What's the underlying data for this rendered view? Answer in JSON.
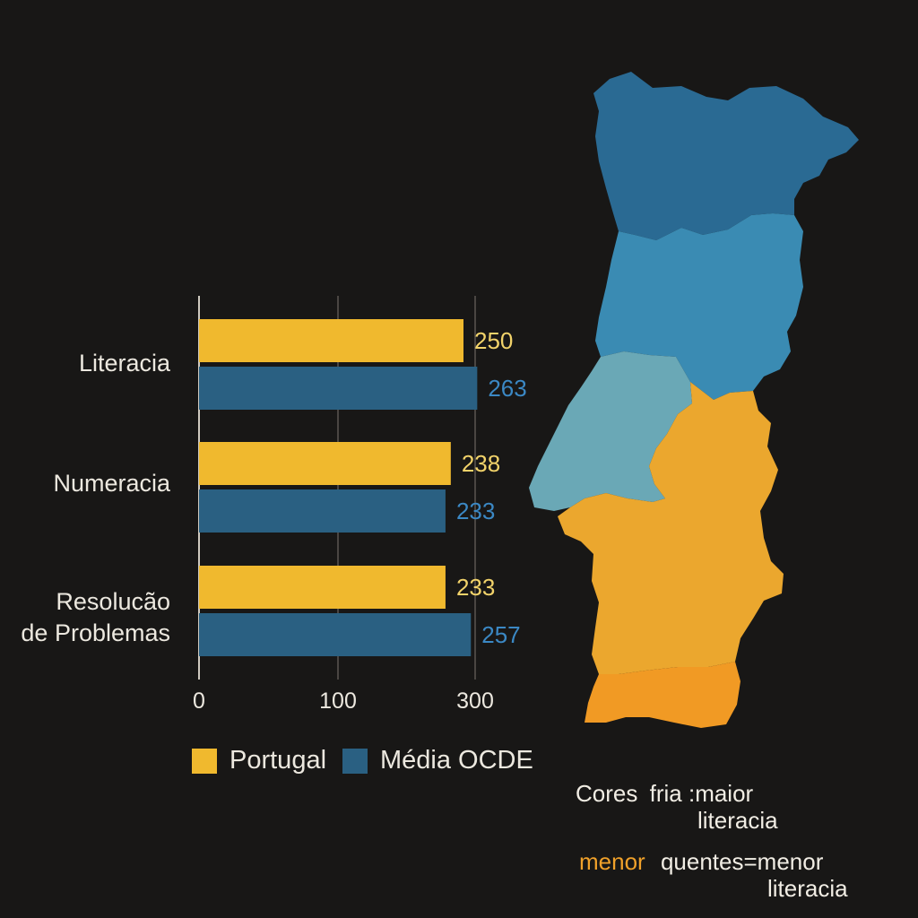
{
  "chart_data": {
    "type": "bar",
    "orientation": "horizontal",
    "categories": [
      "Literacia",
      "Numeracia",
      "Resolucão\nde Problemas"
    ],
    "series": [
      {
        "name": "Portugal",
        "values": [
          250,
          238,
          233
        ],
        "color": "#f0b92e"
      },
      {
        "name": "Média OCDE",
        "values": [
          263,
          233,
          257
        ],
        "color": "#2a6082"
      }
    ],
    "value_label_colors": {
      "Portugal": "#f2d36a",
      "Média OCDE": "#3b88c4"
    },
    "x_ticks": [
      "0",
      "100",
      "300"
    ],
    "grid": true,
    "legend_position": "bottom"
  },
  "legend": {
    "portugal": "Portugal",
    "ocde": "Média OCDE"
  },
  "map_notes": {
    "line1_a": "Cores",
    "line1_b": "fria",
    "line1_c": "maior",
    "line2": "literacia",
    "line3_a": "menor",
    "line3_b": "quentes",
    "line3_c": "menor",
    "line4": "literacia",
    "warm_color": "#f0a12a"
  },
  "map": {
    "regions_colors": [
      "#2a6a93",
      "#3a8bb3",
      "#6aa8b6",
      "#eba72e",
      "#f19a24"
    ]
  }
}
